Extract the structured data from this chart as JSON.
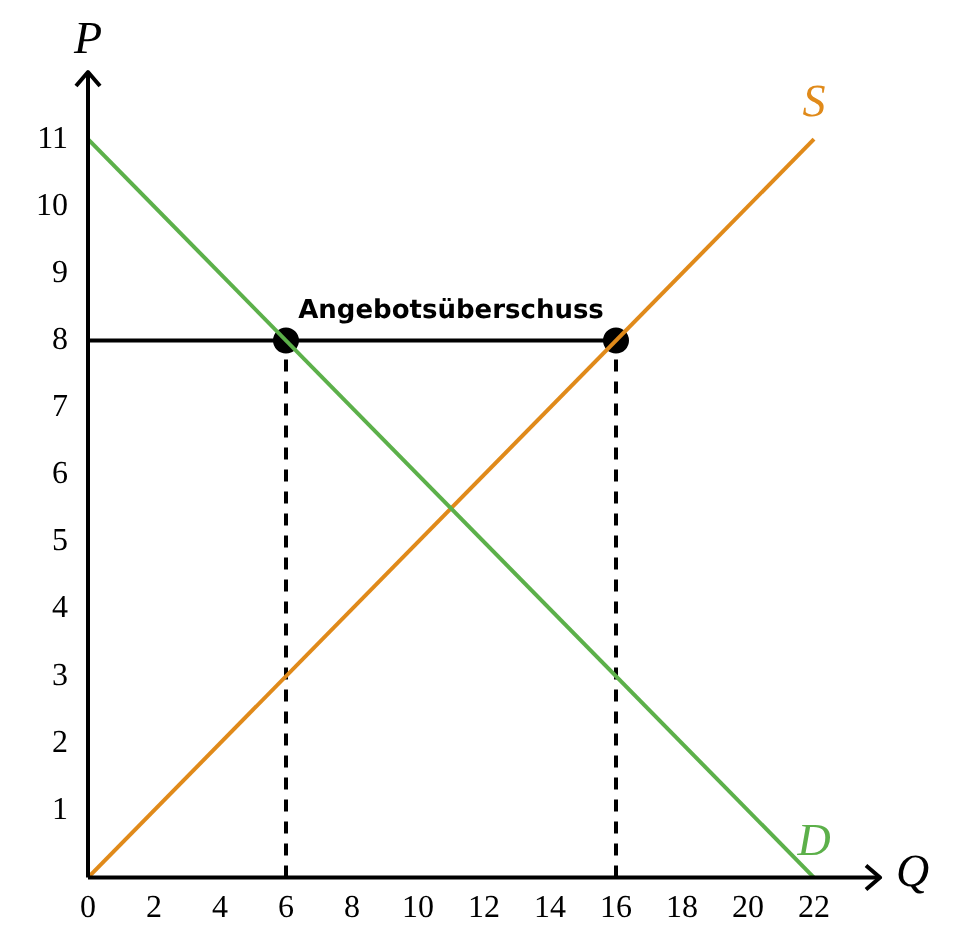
{
  "chart_data": {
    "type": "line",
    "xlabel": "Q",
    "ylabel": "P",
    "xlim": [
      0,
      24
    ],
    "ylim": [
      0,
      12
    ],
    "xticks": [
      0,
      2,
      4,
      6,
      8,
      10,
      12,
      14,
      16,
      18,
      20,
      22
    ],
    "yticks": [
      1,
      2,
      3,
      4,
      5,
      6,
      7,
      8,
      9,
      10,
      11
    ],
    "grid": false,
    "legend": false,
    "marker": "none",
    "series": [
      {
        "name": "D",
        "type": "line",
        "color": "#5cb04a",
        "x": [
          0,
          22
        ],
        "values": [
          11,
          0
        ]
      },
      {
        "name": "S",
        "type": "line",
        "color": "#e08a1a",
        "x": [
          0,
          22
        ],
        "values": [
          0,
          11
        ]
      },
      {
        "type": "line",
        "color": "#000000",
        "x": [
          0,
          16
        ],
        "values": [
          8,
          8
        ]
      },
      {
        "type": "line",
        "color": "#000000",
        "line_style": "dashed",
        "x": [
          6,
          6
        ],
        "values": [
          0,
          8
        ]
      },
      {
        "type": "line",
        "color": "#000000",
        "line_style": "dashed",
        "x": [
          16,
          16
        ],
        "values": [
          0,
          8
        ]
      },
      {
        "type": "scatter",
        "color": "#000000",
        "marker": "circle",
        "x": [
          6,
          16
        ],
        "values": [
          8,
          8
        ]
      }
    ],
    "annotations": [
      {
        "text": "Angebotsüberschuss",
        "x": 11,
        "y": 8
      }
    ]
  }
}
